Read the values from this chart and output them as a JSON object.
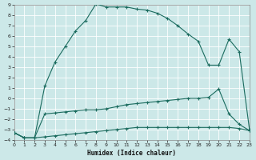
{
  "xlabel": "Humidex (Indice chaleur)",
  "bg_color": "#cce8e8",
  "grid_color": "#b8d8d8",
  "line_color": "#1a6b5e",
  "xlim": [
    0,
    23
  ],
  "ylim": [
    -4,
    9
  ],
  "xticks": [
    0,
    1,
    2,
    3,
    4,
    5,
    6,
    7,
    8,
    9,
    10,
    11,
    12,
    13,
    14,
    15,
    16,
    17,
    18,
    19,
    20,
    21,
    22,
    23
  ],
  "yticks": [
    -4,
    -3,
    -2,
    -1,
    0,
    1,
    2,
    3,
    4,
    5,
    6,
    7,
    8,
    9
  ],
  "line1_x": [
    0,
    1,
    2,
    3,
    4,
    5,
    6,
    7,
    8,
    9,
    10,
    11,
    12,
    13,
    14,
    15,
    16,
    17,
    18,
    19,
    20,
    21,
    22,
    23
  ],
  "line1_y": [
    -3.3,
    -3.8,
    -3.8,
    -3.7,
    -3.6,
    -3.5,
    -3.4,
    -3.3,
    -3.2,
    -3.1,
    -3.0,
    -2.9,
    -2.8,
    -2.8,
    -2.8,
    -2.8,
    -2.8,
    -2.8,
    -2.8,
    -2.8,
    -2.8,
    -2.8,
    -2.9,
    -3.1
  ],
  "line2_x": [
    0,
    1,
    2,
    3,
    4,
    5,
    6,
    7,
    8,
    9,
    10,
    11,
    12,
    13,
    14,
    15,
    16,
    17,
    18,
    19,
    20,
    21,
    22,
    23
  ],
  "line2_y": [
    -3.3,
    -3.8,
    -3.8,
    -1.5,
    -1.4,
    -1.3,
    -1.2,
    -1.1,
    -1.1,
    -1.0,
    -0.8,
    -0.6,
    -0.5,
    -0.4,
    -0.3,
    -0.2,
    -0.1,
    0.0,
    0.0,
    0.1,
    0.9,
    -1.5,
    -2.5,
    -3.1
  ],
  "line3_x": [
    0,
    1,
    2,
    3,
    4,
    5,
    6,
    7,
    8,
    9,
    10,
    11,
    12,
    13,
    14,
    15,
    16,
    17,
    18,
    19,
    20,
    21,
    22,
    23
  ],
  "line3_y": [
    -3.3,
    -3.8,
    -3.8,
    1.2,
    3.5,
    5.0,
    6.5,
    7.5,
    9.1,
    8.8,
    8.8,
    8.8,
    8.6,
    8.5,
    8.2,
    7.7,
    7.0,
    6.2,
    5.5,
    3.2,
    3.2,
    5.7,
    4.5,
    -3.0
  ]
}
